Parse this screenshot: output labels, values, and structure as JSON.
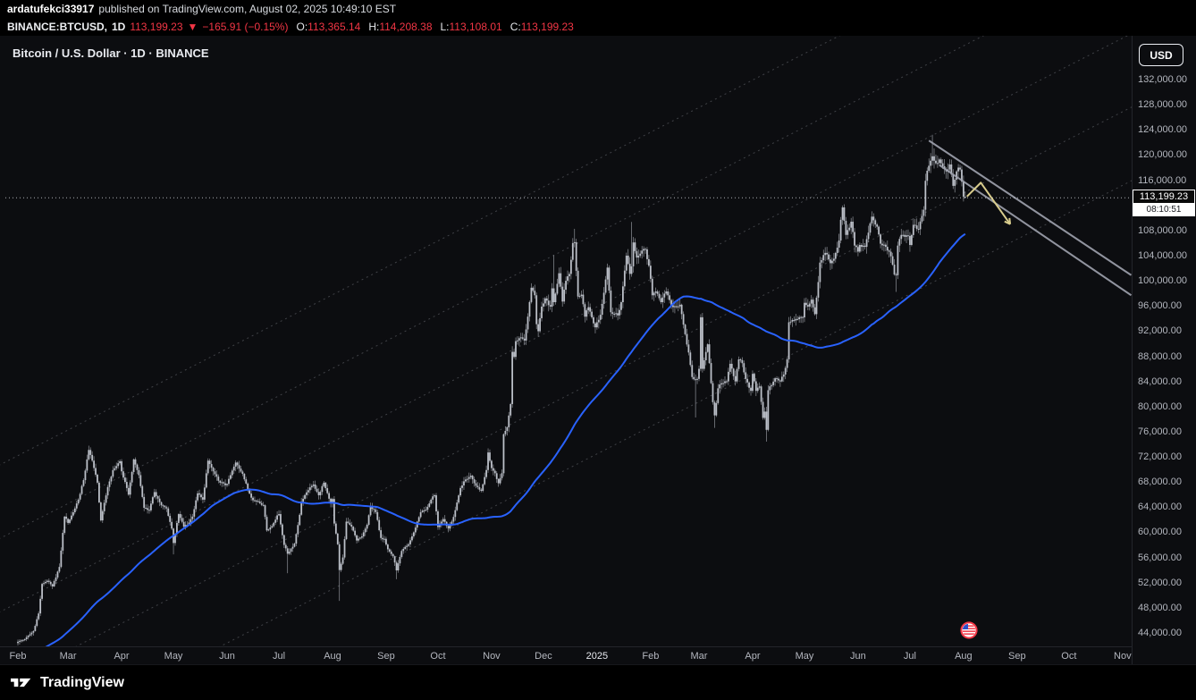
{
  "colors": {
    "accent_red": "#f23645",
    "ma_blue": "#2962ff",
    "background": "#0c0d10",
    "text_secondary": "#b4b7bf"
  },
  "publish_bar": {
    "username": "ardatufekci33917",
    "text": "published on TradingView.com, August 02, 2025 10:49:10 EST"
  },
  "symbol_bar": {
    "symbol": "BINANCE:BTCUSD,",
    "interval": "1D",
    "last": "113,199.23",
    "arrow": "▼",
    "change": "−165.91 (−0.15%)",
    "items": [
      {
        "label": "O:",
        "value": "113,365.14"
      },
      {
        "label": "H:",
        "value": "114,208.38"
      },
      {
        "label": "L:",
        "value": "113,108.01"
      },
      {
        "label": "C:",
        "value": "113,199.23"
      }
    ]
  },
  "chart": {
    "title": "Bitcoin / U.S. Dollar · 1D · BINANCE",
    "currency_button": "USD",
    "price_label": "113,199.23",
    "countdown": "08:10:51"
  },
  "footer": {
    "brand": "TradingView"
  },
  "chart_data": {
    "type": "candlestick",
    "title": "Bitcoin / U.S. Dollar",
    "symbol": "BINANCE:BTCUSD",
    "interval": "1D",
    "last_price": 113199.23,
    "change": -165.91,
    "change_pct": -0.15,
    "ohlc_today": {
      "open": 113365.14,
      "high": 114208.38,
      "low": 113108.01,
      "close": 113199.23
    },
    "y_axis": {
      "min": 44000,
      "max": 132000,
      "step": 4000
    },
    "candle_color": "#c2c6cf",
    "ma": {
      "period": 100,
      "color": "#2962ff"
    },
    "x_axis_months": [
      {
        "label": "Feb",
        "i": 0
      },
      {
        "label": "Mar",
        "i": 29
      },
      {
        "label": "Apr",
        "i": 60
      },
      {
        "label": "May",
        "i": 90
      },
      {
        "label": "Jun",
        "i": 121
      },
      {
        "label": "Jul",
        "i": 151
      },
      {
        "label": "Aug",
        "i": 182
      },
      {
        "label": "Sep",
        "i": 213
      },
      {
        "label": "Oct",
        "i": 243
      },
      {
        "label": "Nov",
        "i": 274
      },
      {
        "label": "Dec",
        "i": 304
      },
      {
        "label": "2025",
        "i": 335,
        "year": true
      },
      {
        "label": "Feb",
        "i": 366
      },
      {
        "label": "Mar",
        "i": 394
      },
      {
        "label": "Apr",
        "i": 425
      },
      {
        "label": "May",
        "i": 455
      },
      {
        "label": "Jun",
        "i": 486
      },
      {
        "label": "Jul",
        "i": 516
      },
      {
        "label": "Aug",
        "i": 547
      },
      {
        "label": "Sep",
        "i": 578
      },
      {
        "label": "Oct",
        "i": 608
      },
      {
        "label": "Nov",
        "i": 639
      }
    ],
    "ma_preload": [
      [
        -100,
        34000
      ],
      [
        -70,
        37500
      ],
      [
        -45,
        43800
      ],
      [
        -30,
        42300
      ],
      [
        -14,
        41500
      ],
      [
        -1,
        42550
      ]
    ],
    "close_anchors": [
      [
        0,
        42600
      ],
      [
        4,
        43000
      ],
      [
        9,
        44300
      ],
      [
        12,
        47100
      ],
      [
        14,
        51800
      ],
      [
        17,
        52300
      ],
      [
        20,
        51400
      ],
      [
        24,
        54500
      ],
      [
        27,
        62500
      ],
      [
        29,
        61500
      ],
      [
        33,
        63800
      ],
      [
        36,
        66100
      ],
      [
        38,
        68300
      ],
      [
        41,
        73100
      ],
      [
        43,
        71400
      ],
      [
        46,
        67900
      ],
      [
        48,
        61900
      ],
      [
        52,
        67200
      ],
      [
        55,
        69900
      ],
      [
        59,
        71300
      ],
      [
        60,
        69700
      ],
      [
        64,
        66000
      ],
      [
        67,
        71600
      ],
      [
        70,
        69100
      ],
      [
        73,
        63900
      ],
      [
        76,
        63500
      ],
      [
        79,
        66400
      ],
      [
        83,
        64300
      ],
      [
        86,
        63800
      ],
      [
        89,
        60600
      ],
      [
        90,
        58300
      ],
      [
        93,
        62900
      ],
      [
        96,
        60900
      ],
      [
        98,
        61200
      ],
      [
        101,
        62500
      ],
      [
        104,
        66200
      ],
      [
        107,
        65200
      ],
      [
        110,
        71400
      ],
      [
        113,
        69700
      ],
      [
        116,
        68200
      ],
      [
        120,
        67500
      ],
      [
        121,
        67700
      ],
      [
        126,
        71100
      ],
      [
        130,
        69300
      ],
      [
        133,
        66800
      ],
      [
        136,
        65100
      ],
      [
        139,
        64900
      ],
      [
        142,
        64300
      ],
      [
        144,
        60300
      ],
      [
        147,
        61000
      ],
      [
        150,
        62700
      ],
      [
        151,
        62900
      ],
      [
        154,
        58000
      ],
      [
        156,
        56600
      ],
      [
        160,
        58200
      ],
      [
        163,
        62800
      ],
      [
        164,
        64870
      ],
      [
        168,
        66700
      ],
      [
        171,
        67600
      ],
      [
        174,
        65900
      ],
      [
        177,
        67900
      ],
      [
        181,
        64600
      ],
      [
        182,
        65300
      ],
      [
        183,
        61400
      ],
      [
        185,
        58100
      ],
      [
        186,
        54000
      ],
      [
        188,
        56000
      ],
      [
        190,
        61700
      ],
      [
        193,
        60900
      ],
      [
        196,
        58700
      ],
      [
        199,
        59350
      ],
      [
        202,
        61200
      ],
      [
        204,
        64100
      ],
      [
        207,
        63200
      ],
      [
        210,
        59100
      ],
      [
        212,
        58970
      ],
      [
        214,
        57300
      ],
      [
        217,
        56200
      ],
      [
        219,
        53950
      ],
      [
        222,
        57040
      ],
      [
        226,
        58100
      ],
      [
        229,
        60000
      ],
      [
        231,
        61700
      ],
      [
        233,
        63200
      ],
      [
        236,
        63600
      ],
      [
        239,
        65200
      ],
      [
        241,
        65900
      ],
      [
        242,
        63330
      ],
      [
        243,
        60840
      ],
      [
        246,
        62100
      ],
      [
        249,
        60600
      ],
      [
        252,
        62450
      ],
      [
        256,
        67050
      ],
      [
        259,
        68400
      ],
      [
        262,
        69000
      ],
      [
        265,
        67400
      ],
      [
        268,
        66600
      ],
      [
        271,
        69910
      ],
      [
        272,
        72700
      ],
      [
        274,
        70215
      ],
      [
        276,
        69400
      ],
      [
        278,
        67800
      ],
      [
        280,
        69400
      ],
      [
        281,
        75600
      ],
      [
        283,
        76700
      ],
      [
        285,
        80400
      ],
      [
        286,
        88700
      ],
      [
        287,
        87900
      ],
      [
        288,
        90400
      ],
      [
        291,
        91000
      ],
      [
        293,
        90500
      ],
      [
        295,
        94300
      ],
      [
        297,
        98900
      ],
      [
        299,
        97700
      ],
      [
        300,
        93100
      ],
      [
        301,
        91980
      ],
      [
        303,
        95900
      ],
      [
        304,
        96400
      ],
      [
        305,
        97200
      ],
      [
        308,
        95900
      ],
      [
        309,
        98800
      ],
      [
        310,
        96600
      ],
      [
        313,
        101200
      ],
      [
        315,
        96700
      ],
      [
        317,
        100000
      ],
      [
        319,
        101100
      ],
      [
        321,
        106000
      ],
      [
        322,
        106140
      ],
      [
        324,
        97500
      ],
      [
        326,
        97800
      ],
      [
        328,
        94300
      ],
      [
        330,
        95800
      ],
      [
        332,
        94200
      ],
      [
        334,
        92600
      ],
      [
        335,
        93400
      ],
      [
        337,
        94600
      ],
      [
        339,
        98100
      ],
      [
        341,
        102100
      ],
      [
        343,
        95000
      ],
      [
        345,
        94700
      ],
      [
        347,
        94500
      ],
      [
        349,
        96600
      ],
      [
        352,
        104000
      ],
      [
        354,
        101100
      ],
      [
        355,
        102300
      ],
      [
        356,
        106100
      ],
      [
        358,
        103700
      ],
      [
        361,
        104800
      ],
      [
        363,
        105000
      ],
      [
        365,
        102400
      ],
      [
        367,
        97700
      ],
      [
        369,
        98300
      ],
      [
        372,
        96600
      ],
      [
        375,
        98300
      ],
      [
        378,
        96100
      ],
      [
        381,
        95800
      ],
      [
        383,
        96200
      ],
      [
        386,
        91500
      ],
      [
        388,
        88600
      ],
      [
        390,
        84700
      ],
      [
        392,
        84300
      ],
      [
        393,
        84400
      ],
      [
        394,
        86000
      ],
      [
        395,
        94200
      ],
      [
        396,
        86000
      ],
      [
        399,
        89900
      ],
      [
        402,
        80700
      ],
      [
        403,
        78600
      ],
      [
        405,
        82900
      ],
      [
        407,
        83700
      ],
      [
        410,
        84000
      ],
      [
        412,
        86800
      ],
      [
        415,
        84000
      ],
      [
        417,
        87500
      ],
      [
        419,
        86900
      ],
      [
        421,
        84400
      ],
      [
        424,
        82500
      ],
      [
        425,
        85200
      ],
      [
        427,
        82500
      ],
      [
        429,
        83200
      ],
      [
        431,
        78200
      ],
      [
        432,
        79200
      ],
      [
        433,
        76300
      ],
      [
        434,
        82600
      ],
      [
        436,
        83400
      ],
      [
        438,
        84500
      ],
      [
        441,
        84000
      ],
      [
        443,
        85100
      ],
      [
        445,
        87500
      ],
      [
        446,
        93400
      ],
      [
        449,
        93700
      ],
      [
        452,
        94200
      ],
      [
        454,
        94180
      ],
      [
        455,
        96500
      ],
      [
        457,
        95900
      ],
      [
        459,
        97000
      ],
      [
        461,
        94700
      ],
      [
        463,
        99800
      ],
      [
        464,
        102900
      ],
      [
        466,
        104100
      ],
      [
        468,
        104200
      ],
      [
        470,
        102800
      ],
      [
        472,
        103500
      ],
      [
        475,
        106400
      ],
      [
        476,
        109700
      ],
      [
        477,
        111670
      ],
      [
        479,
        107300
      ],
      [
        482,
        109400
      ],
      [
        484,
        105600
      ],
      [
        486,
        104640
      ],
      [
        487,
        105700
      ],
      [
        490,
        105400
      ],
      [
        494,
        110200
      ],
      [
        497,
        108600
      ],
      [
        499,
        105900
      ],
      [
        502,
        105400
      ],
      [
        505,
        103900
      ],
      [
        507,
        101000
      ],
      [
        508,
        100900
      ],
      [
        509,
        105600
      ],
      [
        511,
        107300
      ],
      [
        513,
        107000
      ],
      [
        515,
        107140
      ],
      [
        516,
        105700
      ],
      [
        518,
        108900
      ],
      [
        521,
        108200
      ],
      [
        524,
        111300
      ],
      [
        525,
        115900
      ],
      [
        526,
        117500
      ],
      [
        528,
        119100
      ],
      [
        529,
        119800
      ],
      [
        531,
        118700
      ],
      [
        533,
        119300
      ],
      [
        535,
        118200
      ],
      [
        537,
        117400
      ],
      [
        539,
        118500
      ],
      [
        541,
        115100
      ],
      [
        543,
        117400
      ],
      [
        544,
        118000
      ],
      [
        545,
        117700
      ],
      [
        546,
        115760
      ],
      [
        547,
        113365
      ],
      [
        548,
        113199.23
      ]
    ],
    "wick_overrides": [
      {
        "i": 41,
        "high": 73780
      },
      {
        "i": 90,
        "low": 56500
      },
      {
        "i": 156,
        "low": 53500
      },
      {
        "i": 186,
        "low": 49100
      },
      {
        "i": 219,
        "low": 52550
      },
      {
        "i": 286,
        "high": 89600
      },
      {
        "i": 297,
        "high": 99600
      },
      {
        "i": 310,
        "high": 104080
      },
      {
        "i": 322,
        "high": 108268
      },
      {
        "i": 341,
        "high": 102724
      },
      {
        "i": 355,
        "high": 109356
      },
      {
        "i": 392,
        "low": 78258
      },
      {
        "i": 403,
        "low": 76606
      },
      {
        "i": 433,
        "low": 74420
      },
      {
        "i": 477,
        "high": 111980
      },
      {
        "i": 508,
        "low": 98240
      },
      {
        "i": 529,
        "high": 123218
      },
      {
        "i": 548,
        "high": 114208.38,
        "low": 113108.01
      }
    ],
    "channel": {
      "color": "rgba(200,204,215,0.28)",
      "dash": [
        2,
        4
      ],
      "lines": [
        [
          [
            0,
            72200
          ],
          [
            548,
            149200
          ]
        ],
        [
          [
            0,
            60500
          ],
          [
            548,
            137500
          ]
        ],
        [
          [
            0,
            48800
          ],
          [
            548,
            125800
          ]
        ],
        [
          [
            0,
            37100
          ],
          [
            548,
            114100
          ]
        ],
        [
          [
            0,
            25400
          ],
          [
            548,
            102400
          ]
        ]
      ]
    },
    "wedge": {
      "color": "rgba(160,163,175,0.9)",
      "width": 2,
      "lines": [
        [
          [
            527,
            122300
          ],
          [
            644,
            100900
          ]
        ],
        [
          [
            533,
            118400
          ],
          [
            644,
            97700
          ]
        ]
      ]
    },
    "arrow": {
      "color": "#d9cd8d",
      "width": 2,
      "points": [
        [
          549,
          113400
        ],
        [
          557,
          115600
        ],
        [
          574,
          109000
        ]
      ]
    },
    "event_marker": {
      "i": 550,
      "type": "us-flag"
    }
  }
}
